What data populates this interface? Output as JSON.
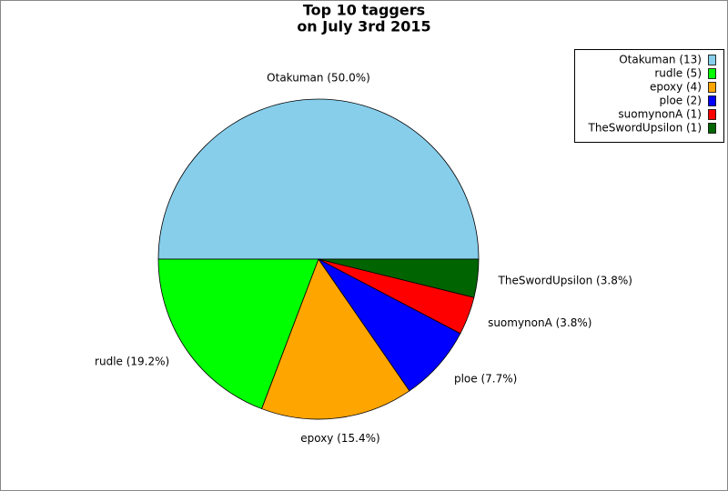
{
  "chart_data": {
    "type": "pie",
    "title": "Top 10 taggers",
    "subtitle": "on July 3rd 2015",
    "categories": [
      "Otakuman",
      "rudle",
      "epoxy",
      "ploe",
      "suomynonA",
      "TheSwordUpsilon"
    ],
    "values": [
      13,
      5,
      4,
      2,
      1,
      1
    ],
    "value_labels": [
      "Otakuman (50.0%)",
      "rudle (19.2%)",
      "epoxy (15.4%)",
      "ploe (7.7%)",
      "suomynonA (3.8%)",
      "TheSwordUpsilon (3.8%)"
    ],
    "legend_labels": [
      "Otakuman (13)",
      "rudle (5)",
      "epoxy (4)",
      "ploe (2)",
      "suomynonA (1)",
      "TheSwordUpsilon (1)"
    ],
    "colors": [
      "#87ceeb",
      "#00ff00",
      "#ffa500",
      "#0000ff",
      "#ff0000",
      "#006400"
    ],
    "legend_position": "upper right"
  }
}
